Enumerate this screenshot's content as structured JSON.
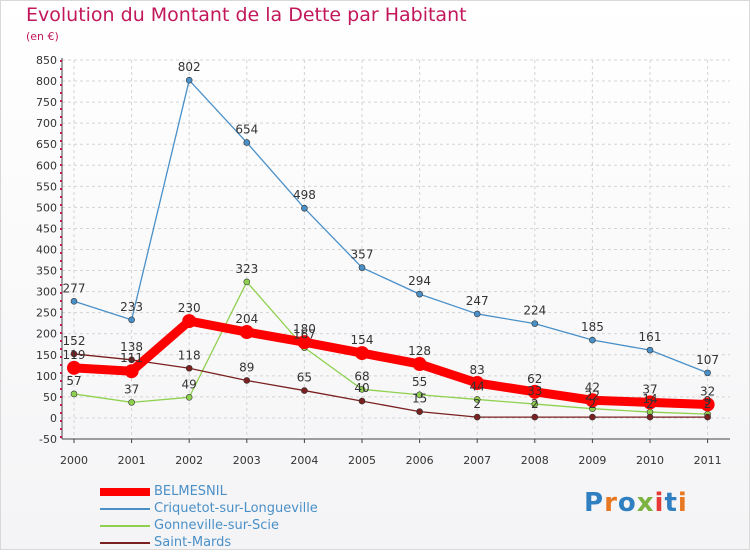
{
  "title": "Evolution du Montant de la Dette par Habitant",
  "subtitle": "(en €)",
  "logo_text": "Proxiti",
  "chart_data": {
    "type": "line",
    "title": "Evolution du Montant de la Dette par Habitant",
    "ylabel": "(en €)",
    "xlabel": "",
    "ylim": [
      -50,
      850
    ],
    "yticks": [
      -50,
      0,
      50,
      100,
      150,
      200,
      250,
      300,
      350,
      400,
      450,
      500,
      550,
      600,
      650,
      700,
      750,
      800,
      850
    ],
    "x": [
      "2000",
      "2001",
      "2002",
      "2003",
      "2004",
      "2005",
      "2006",
      "2007",
      "2008",
      "2009",
      "2010",
      "2011"
    ],
    "grid": true,
    "legend_position": "bottom-left",
    "series": [
      {
        "name": "BELMESNIL",
        "color": "#ff0000",
        "emphasis": "thick",
        "values": [
          119,
          111,
          230,
          204,
          180,
          154,
          128,
          83,
          62,
          42,
          37,
          32
        ],
        "labels": [
          "119",
          "111",
          "230",
          "204",
          "180",
          "154",
          "128",
          "83",
          "62",
          "42",
          "37",
          "32"
        ]
      },
      {
        "name": "Criquetot-sur-Longueville",
        "color": "#4a90c8",
        "emphasis": "thin",
        "values": [
          277,
          233,
          802,
          654,
          498,
          357,
          294,
          247,
          224,
          185,
          161,
          107
        ],
        "labels": [
          "277",
          "233",
          "802",
          "654",
          "498",
          "357",
          "294",
          "247",
          "224",
          "185",
          "161",
          "107"
        ]
      },
      {
        "name": "Gonneville-sur-Scie",
        "color": "#8fd14f",
        "emphasis": "thin",
        "values": [
          57,
          37,
          49,
          323,
          167,
          68,
          55,
          44,
          33,
          22,
          14,
          9
        ],
        "labels": [
          "57",
          "37",
          "49",
          "323",
          "167",
          "68",
          "55",
          "44",
          "33",
          "22",
          "14",
          "9"
        ]
      },
      {
        "name": "Saint-Mards",
        "color": "#7a2020",
        "emphasis": "thin",
        "values": [
          152,
          138,
          118,
          89,
          65,
          40,
          15,
          2,
          2,
          2,
          2,
          2
        ],
        "labels": [
          "152",
          "138",
          "118",
          "89",
          "65",
          "40",
          "15",
          "2",
          "2",
          "2",
          "2",
          "2"
        ]
      }
    ]
  }
}
